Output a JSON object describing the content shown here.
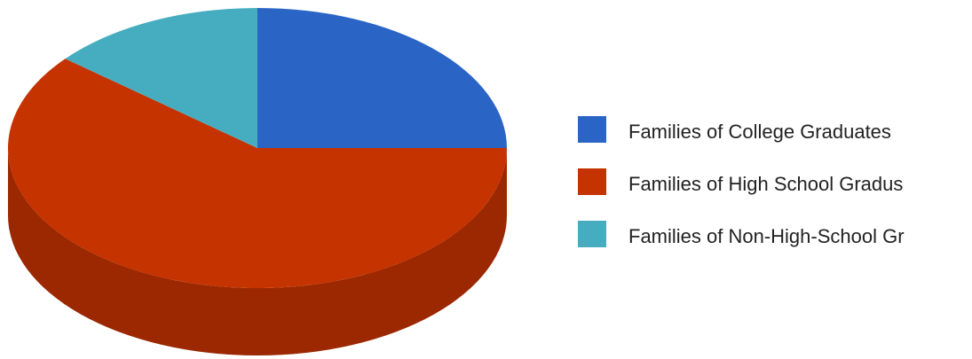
{
  "chart_data": {
    "type": "pie",
    "title": "",
    "three_d": true,
    "legend_position": "right",
    "categories": [
      "Families of College Graduates",
      "Families of High School Gradus",
      "Families of Non-High-School Gr"
    ],
    "values": [
      25,
      61,
      14
    ],
    "colors": [
      "#2a64c5",
      "#c53300",
      "#46adc0"
    ],
    "side_colors": [
      "#1f4a92",
      "#9b2800",
      "#34808e"
    ]
  }
}
